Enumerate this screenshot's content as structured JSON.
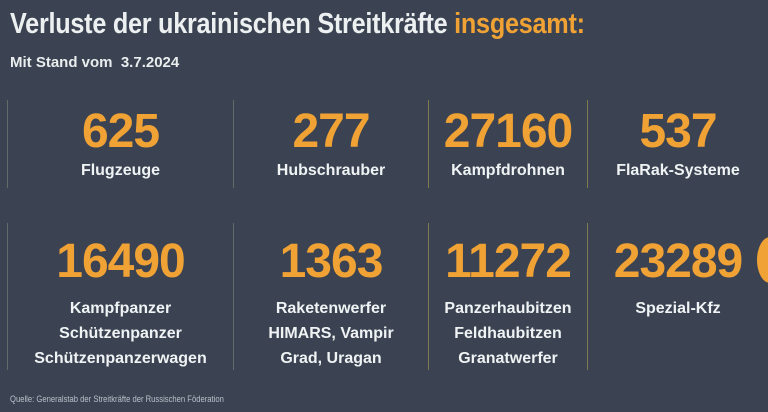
{
  "header": {
    "title_main": "Verluste der ukrainischen Streitkräfte",
    "title_accent": "insgesamt:",
    "subtitle": "Mit Stand vom  3.7.2024"
  },
  "footer": {
    "source": "Quelle: Generalstab der Streitkräfte der Russischen Föderation"
  },
  "colors": {
    "background": "#3b4352",
    "accent_orange": "#f0a235",
    "text_white": "#edf0f1",
    "divider_gray": "#5e6d68",
    "divider_olive": "#7e7b4e",
    "source_text": "#b6c1ca"
  },
  "stats": {
    "row1": [
      {
        "value": "625",
        "labels": [
          "Flugzeuge"
        ]
      },
      {
        "value": "277",
        "labels": [
          "Hubschrauber"
        ]
      },
      {
        "value": "27160",
        "labels": [
          "Kampfdrohnen"
        ]
      },
      {
        "value": "537",
        "labels": [
          "FlaRak-Systeme"
        ]
      }
    ],
    "row2": [
      {
        "value": "16490",
        "labels": [
          "Kampfpanzer",
          "Schützenpanzer",
          "Schützenpanzerwagen"
        ]
      },
      {
        "value": "1363",
        "labels": [
          "Raketenwerfer",
          "HIMARS, Vampir",
          "Grad, Uragan"
        ]
      },
      {
        "value": "11272",
        "labels": [
          "Panzerhaubitzen",
          "Feldhaubitzen",
          "Granatwerfer"
        ]
      },
      {
        "value": "23289",
        "labels": [
          "Spezial-Kfz"
        ]
      }
    ]
  },
  "chart_data": {
    "type": "table",
    "title": "Verluste der ukrainischen Streitkräfte insgesamt:",
    "subtitle": "Mit Stand vom 3.7.2024",
    "categories": [
      "Flugzeuge",
      "Hubschrauber",
      "Kampfdrohnen",
      "FlaRak-Systeme",
      "Kampfpanzer / Schützenpanzer / Schützenpanzerwagen",
      "Raketenwerfer / HIMARS, Vampir / Grad, Uragan",
      "Panzerhaubitzen / Feldhaubitzen / Granatwerfer",
      "Spezial-Kfz"
    ],
    "values": [
      625,
      277,
      27160,
      537,
      16490,
      1363,
      11272,
      23289
    ],
    "source": "Quelle: Generalstab der Streitkräfte der Russischen Föderation",
    "layout": "2 rows x 4 columns stat grid, vertical divider at left of each column"
  }
}
